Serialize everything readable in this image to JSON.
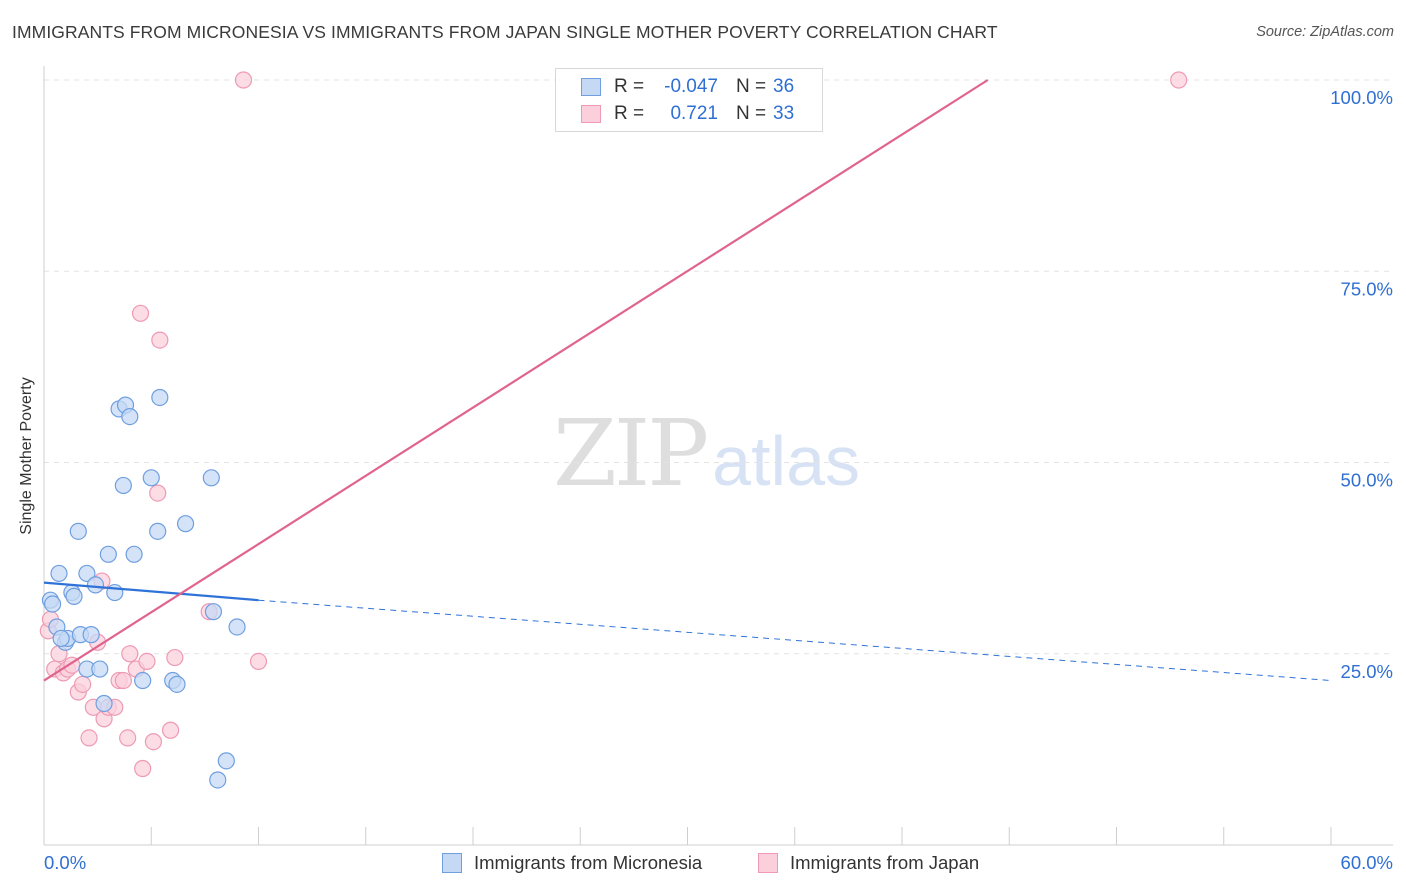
{
  "title": "IMMIGRANTS FROM MICRONESIA VS IMMIGRANTS FROM JAPAN SINGLE MOTHER POVERTY CORRELATION CHART",
  "source": "Source: ZipAtlas.com",
  "watermark": {
    "zip": "ZIP",
    "atlas": "atlas"
  },
  "legend": {
    "r_label": "R =",
    "n_label": "N =",
    "rows": [
      {
        "r": "-0.047",
        "n": "36",
        "fill": "#c5d9f5",
        "stroke": "#6f9fe0"
      },
      {
        "r": "0.721",
        "n": "33",
        "fill": "#fbd0dc",
        "stroke": "#ee9ab4"
      }
    ]
  },
  "bottom_legend": {
    "micronesia": "Immigrants from Micronesia",
    "japan": "Immigrants from Japan"
  },
  "colors": {
    "blue_fill": "#c5d9f5",
    "blue_stroke": "#6f9fe0",
    "blue_line": "#2f73d8",
    "pink_fill": "#fbd0dc",
    "pink_stroke": "#ee9ab4",
    "pink_line": "#e0648d",
    "tick_label": "#2f6fd3"
  },
  "chart_data": {
    "type": "scatter",
    "title": "IMMIGRANTS FROM MICRONESIA VS IMMIGRANTS FROM JAPAN SINGLE MOTHER POVERTY CORRELATION CHART",
    "xlabel": "",
    "ylabel": "Single Mother Poverty",
    "xlim": [
      0,
      60
    ],
    "ylim": [
      0,
      105
    ],
    "x_tick_labels": [
      {
        "value": 0,
        "label": "0.0%"
      },
      {
        "value": 60,
        "label": "60.0%"
      }
    ],
    "y_tick_labels": [
      {
        "value": 25,
        "label": "25.0%"
      },
      {
        "value": 50,
        "label": "50.0%"
      },
      {
        "value": 75,
        "label": "75.0%"
      },
      {
        "value": 100,
        "label": "100.0%"
      }
    ],
    "grid": true,
    "legend_position": "top-center",
    "series": [
      {
        "name": "Immigrants from Micronesia",
        "color": "#6f9fe0",
        "points": [
          [
            0.3,
            32.0
          ],
          [
            0.4,
            31.5
          ],
          [
            0.6,
            28.5
          ],
          [
            0.7,
            35.5
          ],
          [
            1.0,
            26.5
          ],
          [
            1.1,
            27.0
          ],
          [
            1.3,
            33.0
          ],
          [
            1.4,
            32.5
          ],
          [
            1.6,
            41.0
          ],
          [
            1.7,
            27.5
          ],
          [
            2.0,
            35.5
          ],
          [
            2.0,
            23.0
          ],
          [
            2.2,
            27.5
          ],
          [
            2.4,
            34.0
          ],
          [
            2.6,
            23.0
          ],
          [
            2.8,
            18.5
          ],
          [
            3.0,
            38.0
          ],
          [
            3.3,
            33.0
          ],
          [
            3.5,
            57.0
          ],
          [
            3.7,
            47.0
          ],
          [
            3.8,
            57.5
          ],
          [
            4.0,
            56.0
          ],
          [
            4.2,
            38.0
          ],
          [
            4.6,
            21.5
          ],
          [
            5.0,
            48.0
          ],
          [
            5.3,
            41.0
          ],
          [
            5.4,
            58.5
          ],
          [
            6.0,
            21.5
          ],
          [
            6.2,
            21.0
          ],
          [
            6.6,
            42.0
          ],
          [
            7.8,
            48.0
          ],
          [
            7.9,
            30.5
          ],
          [
            8.1,
            8.5
          ],
          [
            8.5,
            11.0
          ],
          [
            9.0,
            28.5
          ],
          [
            0.8,
            27.0
          ]
        ]
      },
      {
        "name": "Immigrants from Japan",
        "color": "#ee9ab4",
        "points": [
          [
            0.2,
            28.0
          ],
          [
            0.3,
            29.5
          ],
          [
            0.5,
            23.0
          ],
          [
            0.7,
            25.0
          ],
          [
            0.9,
            22.5
          ],
          [
            1.1,
            23.0
          ],
          [
            1.3,
            23.5
          ],
          [
            1.6,
            20.0
          ],
          [
            1.8,
            21.0
          ],
          [
            2.1,
            14.0
          ],
          [
            2.3,
            18.0
          ],
          [
            2.5,
            26.5
          ],
          [
            2.7,
            34.5
          ],
          [
            2.8,
            16.5
          ],
          [
            3.0,
            18.0
          ],
          [
            3.3,
            18.0
          ],
          [
            3.5,
            21.5
          ],
          [
            3.7,
            21.5
          ],
          [
            3.9,
            14.0
          ],
          [
            4.0,
            25.0
          ],
          [
            4.3,
            23.0
          ],
          [
            4.5,
            69.5
          ],
          [
            4.6,
            10.0
          ],
          [
            4.8,
            24.0
          ],
          [
            5.1,
            13.5
          ],
          [
            5.3,
            46.0
          ],
          [
            5.4,
            66.0
          ],
          [
            5.9,
            15.0
          ],
          [
            6.1,
            24.5
          ],
          [
            7.7,
            30.5
          ],
          [
            10.0,
            24.0
          ],
          [
            9.3,
            100.0
          ],
          [
            52.9,
            100.0
          ]
        ]
      }
    ],
    "trend_lines": [
      {
        "series": "Immigrants from Micronesia",
        "x": [
          0,
          10
        ],
        "y": [
          34.3,
          32.0
        ],
        "style": "solid"
      },
      {
        "series": "Immigrants from Micronesia",
        "x": [
          10,
          60
        ],
        "y": [
          32.0,
          21.5
        ],
        "style": "dashed"
      },
      {
        "series": "Immigrants from Japan",
        "x": [
          0,
          44
        ],
        "y": [
          21.5,
          100.0
        ],
        "style": "solid"
      }
    ]
  }
}
